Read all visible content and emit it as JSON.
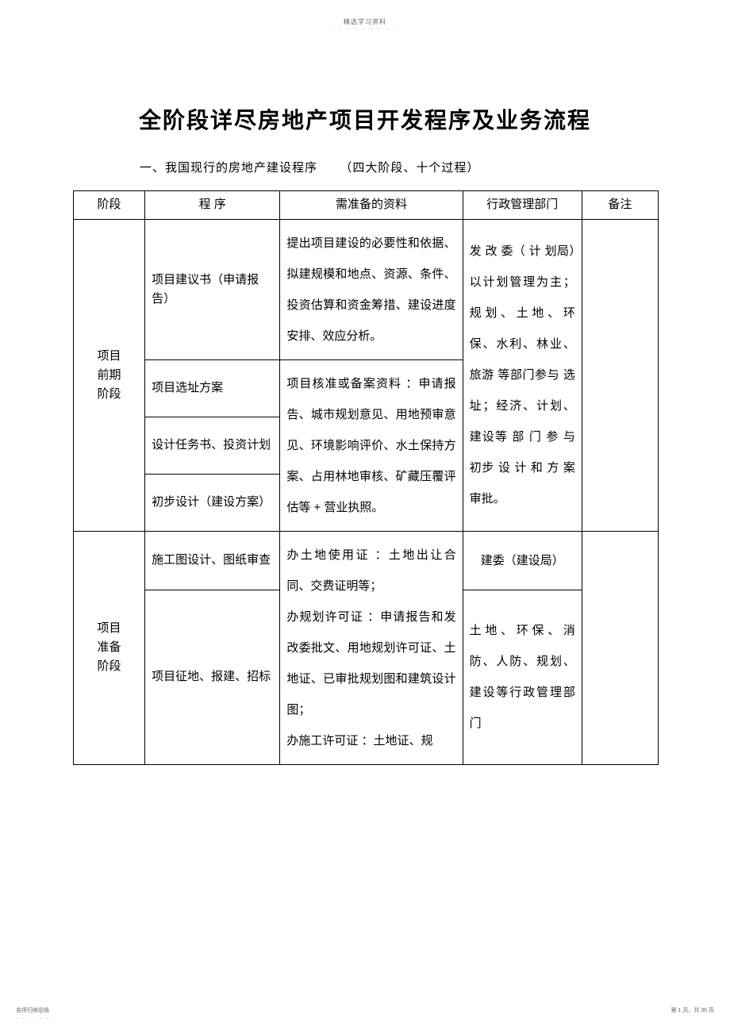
{
  "header": {
    "small_text": "精选学习资料",
    "dots": "- - - - - - - - -"
  },
  "titles": {
    "main": "全阶段详尽房地产项目开发程序及业务流程",
    "sub_prefix": "一、我国现行的房地产建设程序",
    "sub_suffix": "（四大阶段、十个过程）"
  },
  "table": {
    "headers": {
      "stage": "阶段",
      "procedure": "程  序",
      "materials": "需准备的资料",
      "department": "行政管理部门",
      "note": "备注"
    },
    "stage1": {
      "name": "项目\n前期\n阶段",
      "proc1": "项目建议书（申请报告）",
      "proc2": "项目选址方案",
      "proc3": "设计任务书、投资计划",
      "proc4": "初步设计（建设方案）",
      "mat1": "提出项目建设的必要性和依据、拟建规模和地点、资源、条件、投资估算和资金筹措、建设进度安排、效应分析。",
      "mat2": "项目核准或备案资料 ：申请报告、城市规划意见、用地预审意见、环境影响评价、水土保持方案、占用林地审核、矿藏压覆评估等 + 营业执照。",
      "dept": "发 改 委（ 计 划局）以计划管理为主；规划、土地、环保、水利、林业、旅游 等部门参与 选址；经济、计划、建设等 部 门 参 与 初步 设 计 和 方 案审批。"
    },
    "stage2": {
      "name": "项目\n准备\n阶段",
      "proc1": "施工图设计、图纸审查",
      "proc2": "项目征地、报建、招标",
      "mat": "办土地使用证 ：土地出让合同、交费证明等；\n办规划许可证 ：申请报告和发改委批文、用地规划许可证、土地证、已审批规划图和建筑设计图；\n办施工许可证 ：土地证、规",
      "dept1": "建委（建设局）",
      "dept2": "土地、环保、消防、人防、规划、建设等行政管理部门"
    }
  },
  "footer": {
    "left": "名师归纳总结",
    "left_dots": "- - - - - - -",
    "right": "第 1 页，共 36 页"
  }
}
